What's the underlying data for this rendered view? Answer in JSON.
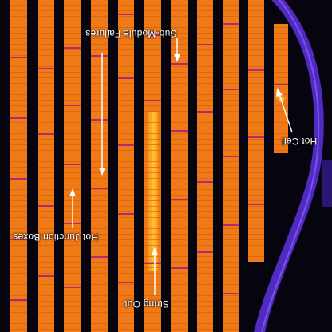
{
  "image": {
    "subject": "thermal-infrared-solar-array",
    "palette": {
      "background": "#06040e",
      "ground_glow": "#5a2fd6",
      "panel_hot": "#ff9a1c",
      "panel_base": "#f07a16",
      "panel_warm": "#ffd23a",
      "seam": "#b02a72",
      "annotation": "#ffffff"
    }
  },
  "annotations": {
    "hot_cell": "Hot Cell",
    "sub_module_failures": "Sub-Module Failures",
    "hot_junction_boxes": "Hot Junction Boxes",
    "string_out": "String Out"
  }
}
